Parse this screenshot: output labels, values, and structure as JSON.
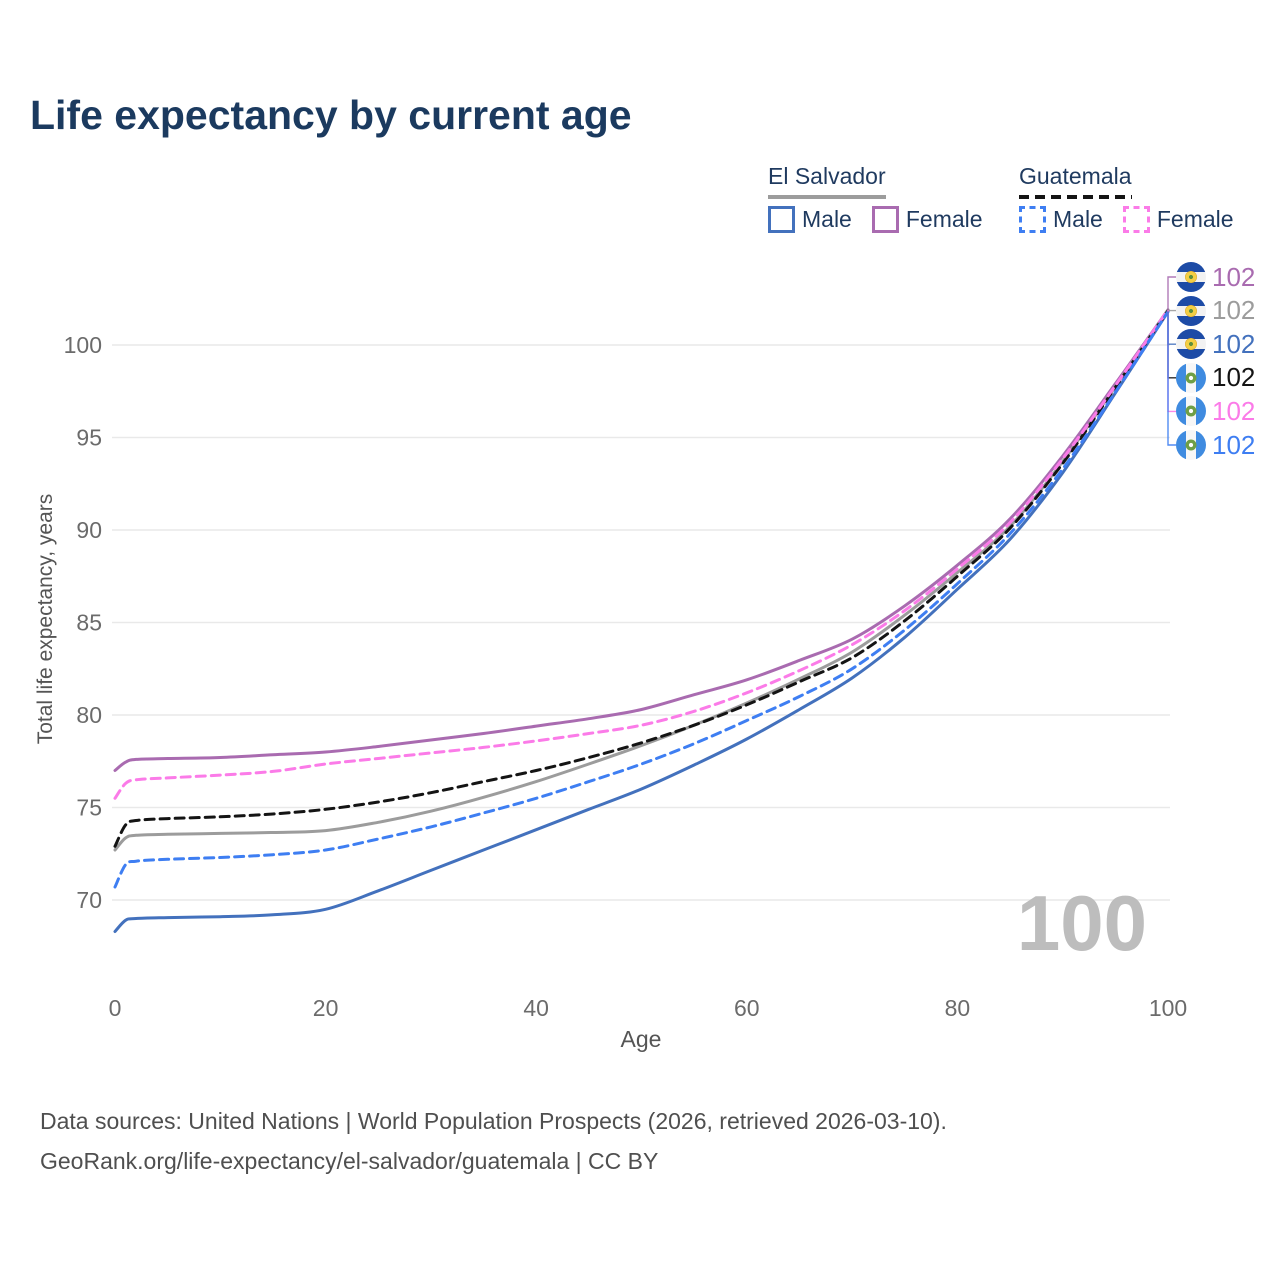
{
  "title": "Life expectancy by current age",
  "legend": {
    "groups": [
      {
        "id": "el-salvador",
        "label": "El Salvador",
        "line_style": "solid",
        "line_color": "#9c9c9c",
        "items": [
          {
            "label": "Male",
            "color": "#4371bd",
            "dashed": false
          },
          {
            "label": "Female",
            "color": "#a96bb0",
            "dashed": false
          }
        ]
      },
      {
        "id": "guatemala",
        "label": "Guatemala",
        "line_style": "dashed",
        "line_color": "#141414",
        "items": [
          {
            "label": "Male",
            "color": "#3e7ef2",
            "dashed": true
          },
          {
            "label": "Female",
            "color": "#fb7be8",
            "dashed": true
          }
        ]
      }
    ]
  },
  "chart_data": {
    "type": "line",
    "title": "Life expectancy by current age",
    "xlabel": "Age",
    "ylabel": "Total life expectancy, years",
    "xlim": [
      0,
      100
    ],
    "ylim": [
      67.5,
      103
    ],
    "xticks": [
      0,
      20,
      40,
      60,
      80,
      100
    ],
    "yticks": [
      70,
      75,
      80,
      85,
      90,
      95,
      100
    ],
    "grid": "horizontal-only",
    "legend_position": "top-right",
    "watermark": "100",
    "x": [
      0,
      1,
      2,
      5,
      10,
      15,
      20,
      25,
      30,
      35,
      40,
      45,
      50,
      55,
      60,
      65,
      70,
      75,
      80,
      85,
      90,
      95,
      100
    ],
    "series": [
      {
        "name": "El Salvador Female",
        "country": "El Salvador",
        "sex": "Female",
        "style": "solid",
        "color": "#a96bb0",
        "icon": "el-salvador-flag-icon",
        "end_label": "102",
        "values": [
          77.0,
          77.45,
          77.6,
          77.65,
          77.7,
          77.85,
          78.0,
          78.3,
          78.65,
          79.0,
          79.4,
          79.8,
          80.3,
          81.1,
          81.9,
          82.95,
          84.1,
          85.9,
          88.1,
          90.6,
          94.0,
          97.9,
          101.9
        ]
      },
      {
        "name": "El Salvador Total",
        "country": "El Salvador",
        "sex": "All",
        "style": "solid",
        "color": "#9c9c9c",
        "icon": "el-salvador-flag-icon",
        "end_label": "102",
        "values": [
          72.7,
          73.35,
          73.5,
          73.55,
          73.6,
          73.65,
          73.75,
          74.2,
          74.8,
          75.55,
          76.4,
          77.35,
          78.35,
          79.45,
          80.65,
          81.95,
          83.4,
          85.4,
          87.7,
          90.2,
          93.7,
          97.75,
          101.9
        ]
      },
      {
        "name": "El Salvador Male",
        "country": "El Salvador",
        "sex": "Male",
        "style": "solid",
        "color": "#4371bd",
        "icon": "el-salvador-flag-icon",
        "end_label": "102",
        "values": [
          68.3,
          68.9,
          69.0,
          69.05,
          69.1,
          69.2,
          69.5,
          70.5,
          71.6,
          72.7,
          73.8,
          74.9,
          76.0,
          77.3,
          78.7,
          80.3,
          82.0,
          84.2,
          86.8,
          89.5,
          93.1,
          97.4,
          101.8
        ]
      },
      {
        "name": "Guatemala Total",
        "country": "Guatemala",
        "sex": "All",
        "style": "dashed",
        "color": "#141414",
        "icon": "guatemala-flag-icon",
        "end_label": "102",
        "values": [
          72.9,
          74.05,
          74.3,
          74.4,
          74.5,
          74.65,
          74.9,
          75.3,
          75.8,
          76.4,
          77.0,
          77.7,
          78.5,
          79.45,
          80.55,
          81.8,
          83.1,
          85.1,
          87.5,
          90.1,
          93.6,
          97.7,
          101.85
        ]
      },
      {
        "name": "Guatemala Female",
        "country": "Guatemala",
        "sex": "Female",
        "style": "dashed",
        "color": "#fb7be8",
        "icon": "guatemala-flag-icon",
        "end_label": "102",
        "values": [
          75.5,
          76.3,
          76.5,
          76.6,
          76.75,
          76.95,
          77.35,
          77.65,
          77.95,
          78.25,
          78.6,
          79.0,
          79.45,
          80.2,
          81.2,
          82.4,
          83.8,
          85.65,
          87.9,
          90.4,
          93.85,
          97.8,
          101.9
        ]
      },
      {
        "name": "Guatemala Male",
        "country": "Guatemala",
        "sex": "Male",
        "style": "dashed",
        "color": "#3e7ef2",
        "icon": "guatemala-flag-icon",
        "end_label": "102",
        "values": [
          70.7,
          71.9,
          72.1,
          72.2,
          72.3,
          72.45,
          72.7,
          73.3,
          73.95,
          74.7,
          75.5,
          76.4,
          77.35,
          78.45,
          79.7,
          81.0,
          82.5,
          84.6,
          87.1,
          89.8,
          93.3,
          97.45,
          101.8
        ]
      }
    ]
  },
  "footer": {
    "line1": "Data sources: United Nations | World Population Prospects (2026, retrieved 2026-03-10).",
    "line2": "GeoRank.org/life-expectancy/el-salvador/guatemala | CC BY"
  }
}
